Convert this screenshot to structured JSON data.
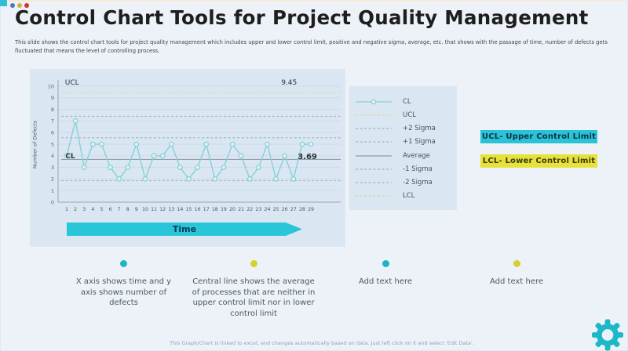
{
  "window": {
    "corner_accent_color": "#2ebfd4",
    "traffic_dot_colors": [
      "#3d7bd0",
      "#cbb53a",
      "#d6332c"
    ]
  },
  "header": {
    "title": "Control Chart Tools for Project Quality Management",
    "description": "This slide shows the control chart tools for project quality management which includes upper and lower control limit, positive and negative sigma, average, etc. that shows with the passage of time, number of defects gets fluctuated that means the level of controlling process."
  },
  "chart_data": {
    "type": "line",
    "title": "",
    "xlabel": "",
    "ylabel": "Number of Defects",
    "time_axis_label": "Time",
    "ylim": [
      0,
      10
    ],
    "yticks": [
      0,
      1,
      2,
      3,
      4,
      5,
      6,
      7,
      8,
      9,
      10
    ],
    "x": [
      1,
      2,
      3,
      4,
      5,
      6,
      7,
      8,
      9,
      10,
      11,
      12,
      13,
      14,
      15,
      16,
      17,
      18,
      19,
      20,
      21,
      22,
      23,
      24,
      25,
      26,
      27,
      28,
      29
    ],
    "series": [
      {
        "name": "CL",
        "color": "#86d0d8",
        "marker": "circle",
        "values": [
          4,
          7,
          3,
          5,
          5,
          3,
          2,
          3,
          5,
          2,
          4,
          4,
          5,
          3,
          2,
          3,
          5,
          2,
          3,
          5,
          4,
          2,
          3,
          5,
          2,
          4,
          2,
          5,
          5
        ]
      }
    ],
    "reference_lines": [
      {
        "name": "UCL",
        "value": 9.45,
        "style": "dashed",
        "color": "#e4d98b"
      },
      {
        "name": "+2 Sigma",
        "value": 7.4,
        "style": "dashed",
        "color": "#a8b2ba"
      },
      {
        "name": "+1 Sigma",
        "value": 5.55,
        "style": "dashed",
        "color": "#a8b2ba"
      },
      {
        "name": "Average",
        "value": 3.69,
        "style": "solid",
        "color": "#8f9aa4"
      },
      {
        "name": "-1 Sigma",
        "value": 1.85,
        "style": "dashed",
        "color": "#a8b2ba"
      }
    ],
    "annotations": [
      {
        "text": "UCL",
        "x": 0.8,
        "y": 10.15,
        "bold": false,
        "size": 9,
        "anchor": "start"
      },
      {
        "text": "9.45",
        "x": 26.5,
        "y": 10.15,
        "bold": false,
        "size": 9,
        "anchor": "middle"
      },
      {
        "text": "CL",
        "x": 0.85,
        "y": 3.78,
        "bold": true,
        "size": 9,
        "anchor": "start"
      },
      {
        "text": "3.69",
        "x": 28.6,
        "y": 3.7,
        "bold": true,
        "size": 10,
        "anchor": "middle"
      }
    ],
    "legend": [
      {
        "label": "CL",
        "color": "#86d0d8",
        "style": "solid",
        "marker": true
      },
      {
        "label": "UCL",
        "color": "#e4d98b",
        "style": "dashed",
        "marker": false
      },
      {
        "label": "+2 Sigma",
        "color": "#a8b2ba",
        "style": "dashed",
        "marker": false
      },
      {
        "label": "+1 Sigma",
        "color": "#a8b2ba",
        "style": "dashed",
        "marker": false
      },
      {
        "label": "Average",
        "color": "#8f9aa4",
        "style": "solid",
        "marker": false
      },
      {
        "label": "-1 Sigma",
        "color": "#a8b2ba",
        "style": "dashed",
        "marker": false
      },
      {
        "label": "-2 Sigma",
        "color": "#a8b2ba",
        "style": "dashed",
        "marker": false
      },
      {
        "label": "LCL",
        "color": "#d6d4a0",
        "style": "dashed",
        "marker": false
      }
    ]
  },
  "badges": [
    {
      "label": "UCL- Upper Control Limit",
      "bg": "#2ac2d6",
      "fg": "#0d3346"
    },
    {
      "label": "LCL- Lower Control Limit",
      "bg": "#e6e23b",
      "fg": "#3a3b10"
    }
  ],
  "bullets": [
    {
      "dot": "#1db5c4",
      "text": "X axis shows time and y axis shows number of defects"
    },
    {
      "dot": "#d6cf2e",
      "text": "Central line shows the average of processes that are neither in upper control limit nor in lower control limit"
    },
    {
      "dot": "#1db5c4",
      "text": "Add text here"
    },
    {
      "dot": "#d6cf2e",
      "text": "Add text here"
    }
  ],
  "footer": {
    "text": "This Graph/Chart is linked to excel, and changes automatically based on data. Just left click on it and select 'Edit Data'."
  },
  "icons": {
    "gear_color": "#1db8c8"
  }
}
